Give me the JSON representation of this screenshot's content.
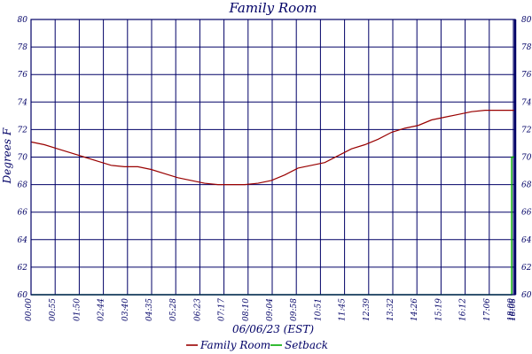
{
  "chart_data": {
    "type": "line",
    "title": "Family Room",
    "xlabel": "06/06/23 (EST)",
    "ylabel": "Degrees F",
    "ylim": [
      60,
      80
    ],
    "y_ticks": [
      "60",
      "62",
      "64",
      "66",
      "68",
      "70",
      "72",
      "74",
      "76",
      "78",
      "80"
    ],
    "x_ticks": [
      "00:00",
      "00:55",
      "01:50",
      "02:44",
      "03:40",
      "04:35",
      "05:28",
      "06:23",
      "07:17",
      "08:10",
      "09:04",
      "09:58",
      "10:51",
      "11:45",
      "12:39",
      "13:32",
      "14:26",
      "15:19",
      "16:12",
      "17:06",
      "18:00",
      "18:08"
    ],
    "x_unit": "hours",
    "xlim": [
      0,
      18.13
    ],
    "grid": true,
    "legend_placement": "bottom-center",
    "series": [
      {
        "name": "Family Room",
        "color": "#990000",
        "x": [
          0.0,
          0.5,
          1.0,
          1.5,
          2.0,
          2.5,
          3.0,
          3.5,
          4.0,
          4.5,
          5.0,
          5.5,
          6.0,
          6.5,
          7.0,
          7.5,
          8.0,
          8.5,
          9.0,
          9.5,
          10.0,
          10.5,
          11.0,
          11.5,
          12.0,
          12.5,
          13.0,
          13.5,
          14.0,
          14.5,
          15.0,
          15.5,
          16.0,
          16.5,
          17.0,
          17.5,
          18.1
        ],
        "values": [
          71.1,
          70.9,
          70.6,
          70.3,
          70.0,
          69.7,
          69.4,
          69.3,
          69.3,
          69.1,
          68.8,
          68.5,
          68.3,
          68.1,
          68.0,
          68.0,
          68.0,
          68.1,
          68.3,
          68.7,
          69.2,
          69.4,
          69.6,
          70.1,
          70.6,
          70.9,
          71.3,
          71.8,
          72.1,
          72.3,
          72.7,
          72.9,
          73.1,
          73.3,
          73.4,
          73.4,
          73.4
        ]
      },
      {
        "name": "Setback",
        "color": "#00aa00",
        "x": [
          0.0,
          18.0,
          18.0,
          18.13
        ],
        "values": [
          60.0,
          60.0,
          70.0,
          70.0
        ]
      }
    ]
  }
}
